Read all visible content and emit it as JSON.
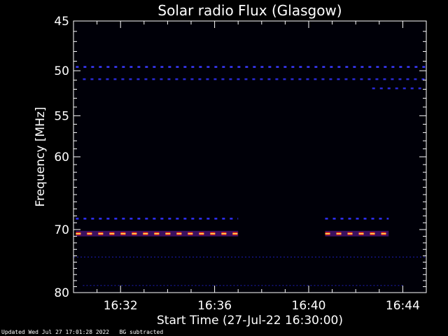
{
  "chart_data": {
    "type": "heatmap",
    "title": "Solar radio Flux (Glasgow)",
    "xlabel": "Start Time (27-Jul-22 16:30:00)",
    "ylabel": "Frequency [MHz]",
    "x_start": "16:30:00",
    "x_range_minutes": [
      0,
      15
    ],
    "x_ticks": [
      {
        "minute": 2,
        "label": "16:32"
      },
      {
        "minute": 6,
        "label": "16:36"
      },
      {
        "minute": 10,
        "label": "16:40"
      },
      {
        "minute": 14,
        "label": "16:44"
      }
    ],
    "y_scale": "log",
    "ylim": [
      45,
      80
    ],
    "y_reversed": true,
    "y_ticks": [
      45,
      50,
      55,
      60,
      70,
      80
    ],
    "background_color": "#000008",
    "emission_bands": [
      {
        "freq_mhz": 49.6,
        "start_min": 0.1,
        "end_min": 15.0,
        "intensity": "low",
        "color": "#3a3aff"
      },
      {
        "freq_mhz": 50.9,
        "start_min": 0.4,
        "end_min": 15.0,
        "intensity": "low",
        "color": "#2a2ad8"
      },
      {
        "freq_mhz": 51.9,
        "start_min": 12.7,
        "end_min": 15.0,
        "intensity": "low",
        "color": "#2a2ad8"
      },
      {
        "freq_mhz": 68.4,
        "start_min": 0.1,
        "end_min": 7.0,
        "intensity": "low",
        "color": "#3030ff"
      },
      {
        "freq_mhz": 68.4,
        "start_min": 10.7,
        "end_min": 13.4,
        "intensity": "low",
        "color": "#3030ff"
      },
      {
        "freq_mhz": 70.6,
        "start_min": 0.1,
        "end_min": 7.0,
        "intensity": "high",
        "color": "#ff3010"
      },
      {
        "freq_mhz": 70.6,
        "start_min": 10.7,
        "end_min": 13.4,
        "intensity": "high",
        "color": "#ff3010"
      },
      {
        "freq_mhz": 74.2,
        "start_min": 0.0,
        "end_min": 15.0,
        "intensity": "faint",
        "color": "#1a1aa0"
      },
      {
        "freq_mhz": 78.8,
        "start_min": 0.4,
        "end_min": 14.0,
        "intensity": "faint",
        "color": "#1a1aa0"
      }
    ]
  },
  "footer": {
    "updated": "Updated Wed Jul 27 17:01:28 2022",
    "note": "BG subtracted"
  }
}
